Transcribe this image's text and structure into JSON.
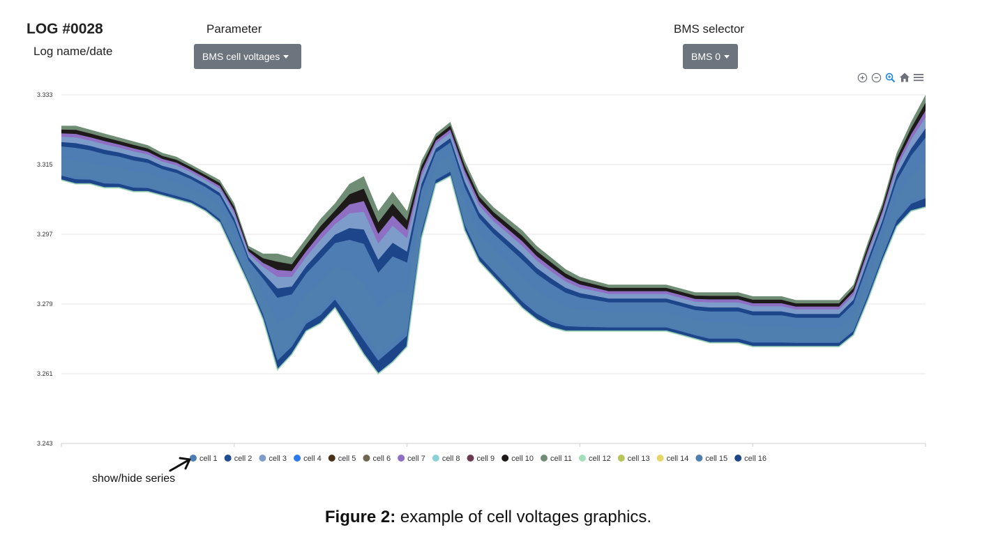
{
  "log": {
    "title": "LOG #0028",
    "subtitle": "Log name/date"
  },
  "controls": {
    "parameter_label": "Parameter",
    "parameter_value": "BMS cell voltages",
    "bms_label": "BMS selector",
    "bms_value": "BMS 0"
  },
  "toolbar": {
    "icons": [
      "zoom-in-icon",
      "zoom-out-icon",
      "zoom-select-icon",
      "home-icon",
      "menu-icon"
    ],
    "active_color": "#1e88e5",
    "color": "#6e7079"
  },
  "annotation": {
    "text": "show/hide series"
  },
  "caption": {
    "bold": "Figure 2:",
    "text": "example of cell voltages graphics."
  },
  "chart_data": {
    "type": "area",
    "title": "",
    "xlabel": "",
    "ylabel": "",
    "ylim": [
      3.243,
      3.333
    ],
    "yticks": [
      "3.333",
      "3.315",
      "3.297",
      "3.279",
      "3.261",
      "3.243"
    ],
    "grid": true,
    "legend_position": "bottom",
    "x": [
      0,
      1,
      2,
      3,
      4,
      5,
      6,
      7,
      8,
      9,
      10,
      11,
      12,
      13,
      14,
      15,
      16,
      17,
      18,
      19,
      20,
      21,
      22,
      23,
      24,
      25,
      26,
      27,
      28,
      29,
      30,
      31,
      32,
      33,
      34,
      35,
      36,
      37,
      38,
      39,
      40,
      41,
      42,
      43,
      44,
      45,
      46,
      47,
      48,
      49,
      50,
      51,
      52,
      53,
      54,
      55,
      56,
      57,
      58,
      59,
      60
    ],
    "upper": [
      3.325,
      3.325,
      3.324,
      3.323,
      3.322,
      3.321,
      3.32,
      3.318,
      3.317,
      3.315,
      3.313,
      3.311,
      3.305,
      3.294,
      3.292,
      3.292,
      3.291,
      3.296,
      3.301,
      3.305,
      3.31,
      3.312,
      3.303,
      3.308,
      3.303,
      3.316,
      3.323,
      3.326,
      3.316,
      3.308,
      3.304,
      3.301,
      3.298,
      3.294,
      3.291,
      3.288,
      3.286,
      3.285,
      3.284,
      3.284,
      3.284,
      3.284,
      3.284,
      3.283,
      3.282,
      3.282,
      3.282,
      3.282,
      3.281,
      3.281,
      3.281,
      3.28,
      3.28,
      3.28,
      3.28,
      3.284,
      3.295,
      3.305,
      3.318,
      3.326,
      3.333
    ],
    "lower": [
      3.311,
      3.31,
      3.31,
      3.309,
      3.309,
      3.308,
      3.308,
      3.307,
      3.306,
      3.305,
      3.303,
      3.3,
      3.292,
      3.284,
      3.275,
      3.262,
      3.266,
      3.272,
      3.274,
      3.278,
      3.272,
      3.266,
      3.261,
      3.264,
      3.268,
      3.296,
      3.31,
      3.312,
      3.298,
      3.29,
      3.286,
      3.282,
      3.278,
      3.275,
      3.273,
      3.272,
      3.272,
      3.272,
      3.272,
      3.272,
      3.272,
      3.272,
      3.272,
      3.271,
      3.27,
      3.269,
      3.269,
      3.269,
      3.268,
      3.268,
      3.268,
      3.268,
      3.268,
      3.268,
      3.268,
      3.271,
      3.28,
      3.29,
      3.299,
      3.303,
      3.304
    ],
    "series": [
      {
        "name": "cell 1",
        "color": "#4d7db3"
      },
      {
        "name": "cell 2",
        "color": "#1f4d8f"
      },
      {
        "name": "cell 3",
        "color": "#7d9cc9"
      },
      {
        "name": "cell 4",
        "color": "#2c7bed"
      },
      {
        "name": "cell 5",
        "color": "#4a3218"
      },
      {
        "name": "cell 6",
        "color": "#6e6650"
      },
      {
        "name": "cell 7",
        "color": "#8e6fc4"
      },
      {
        "name": "cell 8",
        "color": "#8bd2d8"
      },
      {
        "name": "cell 9",
        "color": "#6b3a52"
      },
      {
        "name": "cell 10",
        "color": "#1e1a19"
      },
      {
        "name": "cell 11",
        "color": "#6e8d74"
      },
      {
        "name": "cell 12",
        "color": "#a2dfba"
      },
      {
        "name": "cell 13",
        "color": "#b7c55a"
      },
      {
        "name": "cell 14",
        "color": "#e7d567"
      },
      {
        "name": "cell 15",
        "color": "#4f7fae"
      },
      {
        "name": "cell 16",
        "color": "#1d458a"
      }
    ]
  }
}
